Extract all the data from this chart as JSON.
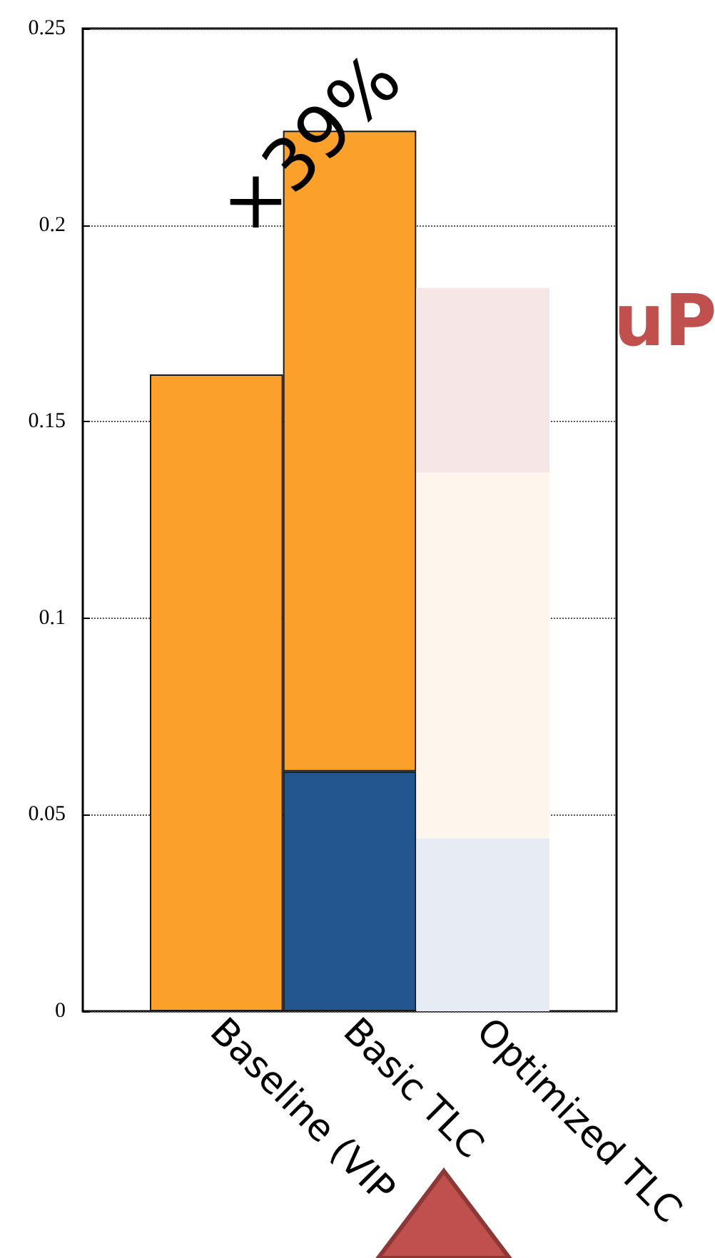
{
  "chart_data": {
    "type": "bar",
    "stacked": true,
    "categories": [
      "Baseline (VIP",
      "Basic TLC",
      "Optimized TLC"
    ],
    "series": [
      {
        "colors": [
          "#23568f",
          "#23568f",
          "#e7ecf4"
        ],
        "values": [
          null,
          0.061,
          0.044
        ]
      },
      {
        "colors": [
          "#fba02b",
          "#fba02b",
          "#fef5ec"
        ],
        "values": [
          0.162,
          0.163,
          0.093
        ]
      },
      {
        "colors": [
          "#f7e6e6",
          "#f7e6e6",
          "#f7e6e6"
        ],
        "values": [
          null,
          null,
          0.047
        ]
      }
    ],
    "ylim": [
      0,
      0.25
    ],
    "yticks": [
      0,
      0.05,
      0.1,
      0.15,
      0.2,
      0.25
    ],
    "grid": "y",
    "annotations": [
      "×39%",
      "uP"
    ]
  }
}
